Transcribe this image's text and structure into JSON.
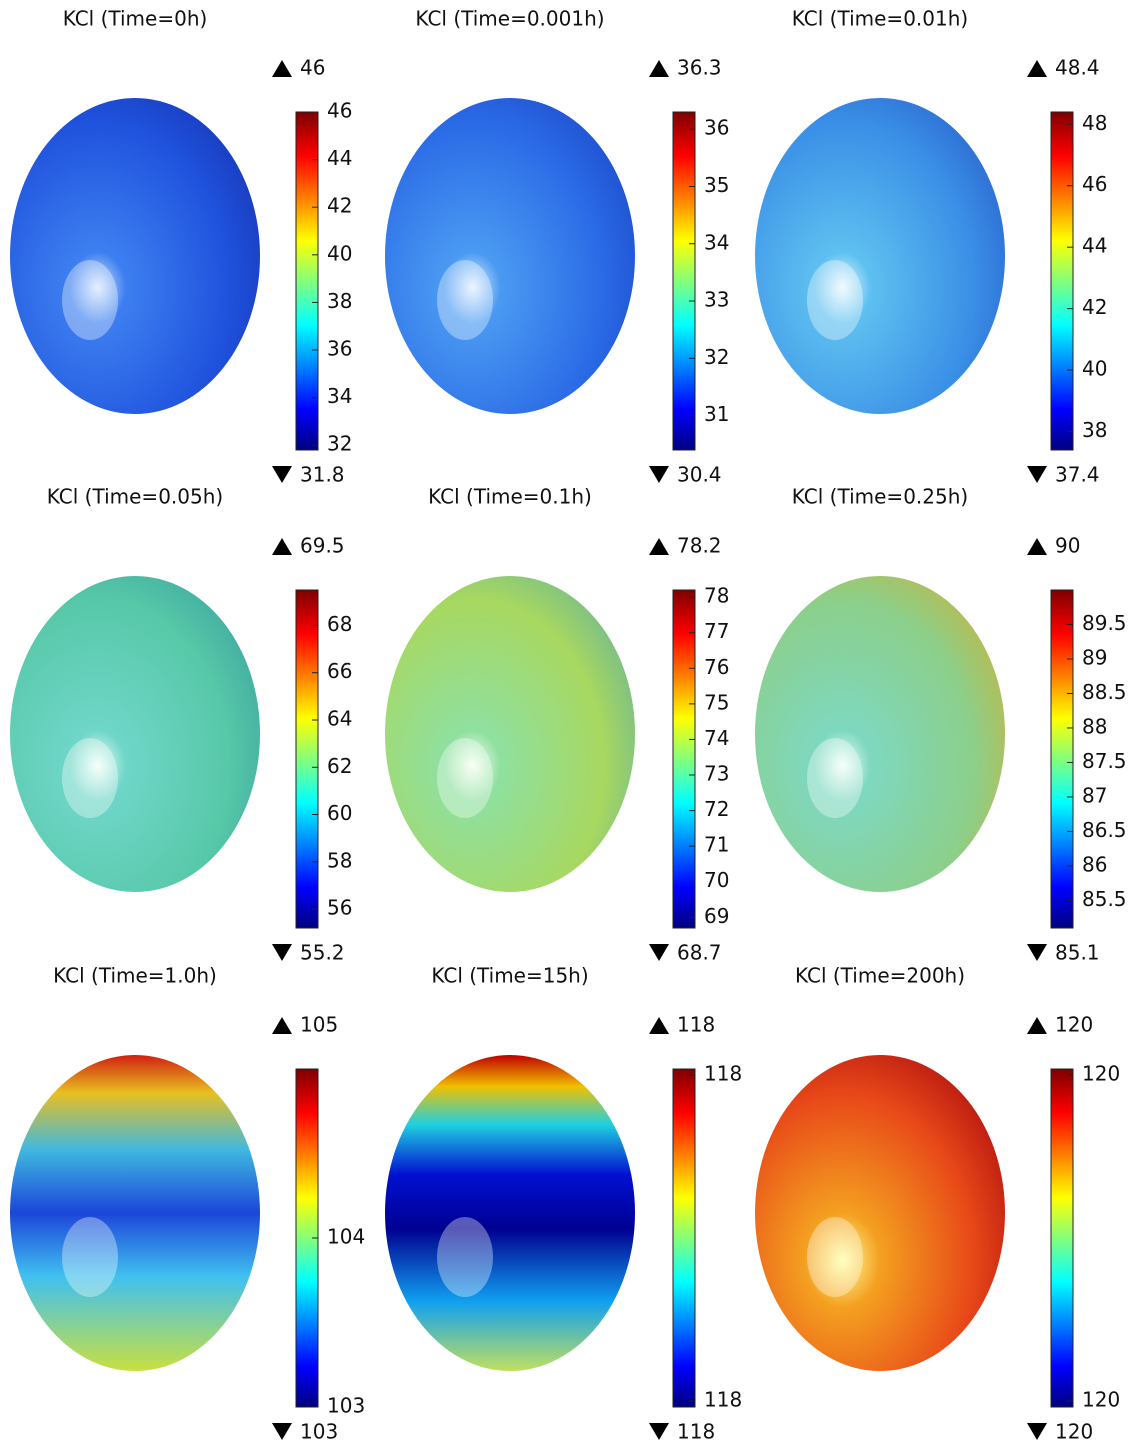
{
  "panels": [
    {
      "title": "KCl (Time=0h)",
      "max": 46,
      "min": 31.8,
      "ticks": [
        46,
        44,
        42,
        40,
        38,
        36,
        34,
        32
      ]
    },
    {
      "title": "KCl (Time=0.001h)",
      "max": 36.3,
      "min": 30.4,
      "ticks": [
        36,
        35,
        34,
        33,
        32,
        31
      ]
    },
    {
      "title": "KCl (Time=0.01h)",
      "max": 48.4,
      "min": 37.4,
      "ticks": [
        48,
        46,
        44,
        42,
        40,
        38
      ]
    },
    {
      "title": "KCl (Time=0.05h)",
      "max": 69.5,
      "min": 55.2,
      "ticks": [
        68,
        66,
        64,
        62,
        60,
        58,
        56
      ]
    },
    {
      "title": "KCl (Time=0.1h)",
      "max": 78.2,
      "min": 68.7,
      "ticks": [
        78,
        77,
        76,
        75,
        74,
        73,
        72,
        71,
        70,
        69
      ]
    },
    {
      "title": "KCl (Time=0.25h)",
      "max": 90,
      "min": 85.1,
      "ticks": [
        89.5,
        89,
        88.5,
        88,
        87.5,
        87,
        86.5,
        86,
        85.5
      ]
    },
    {
      "title": "KCl (Time=1.0h)",
      "max": 105,
      "min": 103,
      "ticks": [
        104,
        103
      ]
    },
    {
      "title": "KCl (Time=15h)",
      "max": 118,
      "min": 118,
      "ticks": [
        118,
        118
      ]
    },
    {
      "title": "KCl (Time=200h)",
      "max": 120,
      "min": 120,
      "ticks": [
        120,
        120
      ]
    }
  ]
}
